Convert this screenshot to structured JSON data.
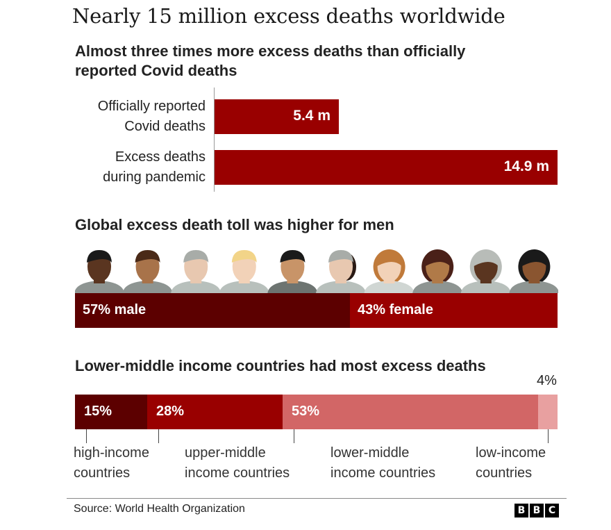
{
  "title": "Nearly 15 million excess deaths worldwide",
  "chart_data": [
    {
      "type": "bar",
      "orientation": "horizontal",
      "title": "Almost three times more excess deaths than officially reported Covid deaths",
      "title_lines": [
        "Almost three times more excess deaths than officially",
        "reported Covid deaths"
      ],
      "categories": [
        [
          "Officially reported",
          "Covid deaths"
        ],
        [
          "Excess deaths",
          "during pandemic"
        ]
      ],
      "values": [
        5.4,
        14.9
      ],
      "value_labels": [
        "5.4 m",
        "14.9 m"
      ],
      "unit": "million",
      "xlim": [
        0,
        14.9
      ],
      "color": "#990000"
    },
    {
      "type": "bar",
      "orientation": "stacked-horizontal",
      "title": "Global excess death toll was higher for men",
      "categories": [
        "male",
        "female"
      ],
      "values": [
        57,
        43
      ],
      "value_labels": [
        "57% male",
        "43% female"
      ],
      "unit": "%",
      "colors": [
        "#5c0000",
        "#990000"
      ],
      "people_icons": [
        {
          "name": "man",
          "skin": "#5a3520",
          "hair": "#1a1a1a",
          "shirt": "#8e9592"
        },
        {
          "name": "man",
          "skin": "#a8734a",
          "hair": "#4a2a18",
          "shirt": "#8e9592"
        },
        {
          "name": "man",
          "skin": "#e8c8b0",
          "hair": "#a8aca8",
          "shirt": "#b8c0bc"
        },
        {
          "name": "man",
          "skin": "#f2d2b8",
          "hair": "#f2d488",
          "shirt": "#b8c0bc"
        },
        {
          "name": "man",
          "skin": "#c89468",
          "hair": "#1a1a1a",
          "shirt": "#6d7471"
        },
        {
          "name": "man-woman",
          "skin": "#e8c8b0",
          "hair": "#a8aca8",
          "hair2": "#2a1a14",
          "shirt": "#b8c0bc"
        },
        {
          "name": "woman",
          "skin": "#f2d2b8",
          "hair": "#c07a3a",
          "shirt": "#d0d6d3"
        },
        {
          "name": "woman",
          "skin": "#b07a48",
          "hair": "#4a2018",
          "shirt": "#8e9592"
        },
        {
          "name": "woman",
          "skin": "#5a3520",
          "hair": "#b8bcb8",
          "shirt": "#b8c0bc"
        },
        {
          "name": "woman",
          "skin": "#8a5530",
          "hair": "#1a1a1a",
          "shirt": "#8e9592"
        }
      ]
    },
    {
      "type": "bar",
      "orientation": "stacked-horizontal",
      "title": "Lower-middle income countries had most excess deaths",
      "categories": [
        "high-income countries",
        "upper-middle income countries",
        "lower-middle income countries",
        "low-income countries"
      ],
      "category_lines": [
        [
          "high-income",
          "countries"
        ],
        [
          "upper-middle",
          "income countries"
        ],
        [
          "lower-middle",
          "income countries"
        ],
        [
          "low-income",
          "countries"
        ]
      ],
      "values": [
        15,
        28,
        53,
        4
      ],
      "value_labels": [
        "15%",
        "28%",
        "53%",
        "4%"
      ],
      "unit": "%",
      "colors": [
        "#5c0000",
        "#990000",
        "#d26666",
        "#e8a0a0"
      ]
    }
  ],
  "footer": {
    "source": "Source: World Health Organization",
    "logo_letters": [
      "B",
      "B",
      "C"
    ]
  }
}
